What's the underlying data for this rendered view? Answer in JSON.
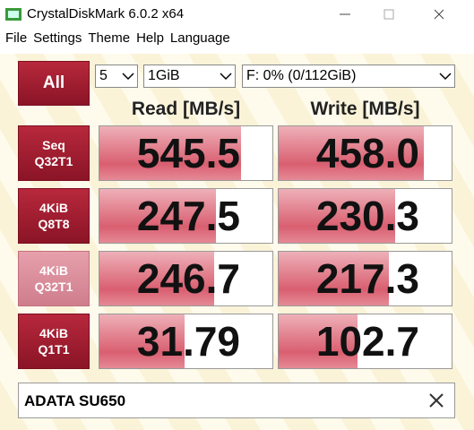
{
  "window": {
    "title": "CrystalDiskMark 6.0.2 x64"
  },
  "menu": [
    "File",
    "Settings",
    "Theme",
    "Help",
    "Language"
  ],
  "controls": {
    "all_button": "All",
    "count": "5",
    "size": "1GiB",
    "drive": "F: 0% (0/112GiB)"
  },
  "headers": {
    "read": "Read [MB/s]",
    "write": "Write [MB/s]"
  },
  "rows": [
    {
      "label": [
        "Seq",
        "Q32T1"
      ],
      "read": "545.5",
      "write": "458.0"
    },
    {
      "label": [
        "4KiB",
        "Q8T8"
      ],
      "read": "247.5",
      "write": "230.3"
    },
    {
      "label": [
        "4KiB",
        "Q32T1"
      ],
      "read": "246.7",
      "write": "217.3"
    },
    {
      "label": [
        "4KiB",
        "Q1T1"
      ],
      "read": "31.79",
      "write": "102.7"
    }
  ],
  "comment": "ADATA SU650"
}
